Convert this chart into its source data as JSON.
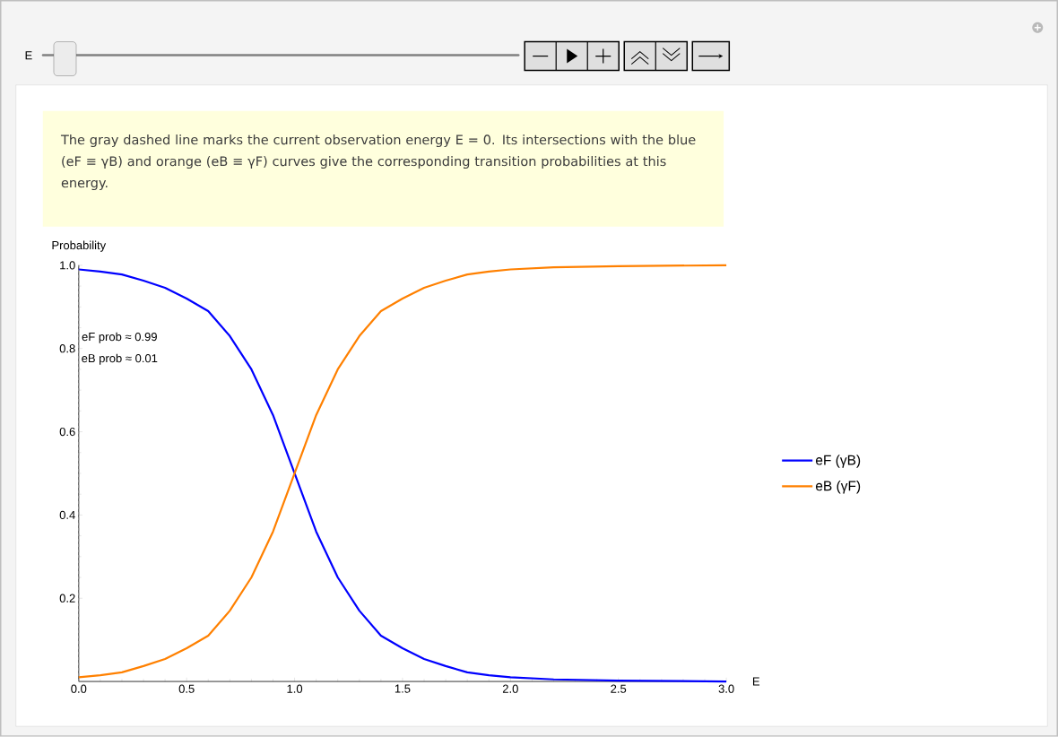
{
  "chart_data": {
    "type": "line",
    "annotations": [
      "The gray dashed line marks the current observation energy  E = 0. Its intersections with the blue (eF ≡ γB) and orange (eB ≡ γF) curves give the corresponding transition probabilities at this energy.",
      "eF prob ≈ 0.99",
      "eB prob ≈ 0.01",
      "E"
    ],
    "xlabel": "E",
    "ylabel": "Probability",
    "x": [
      0,
      0.1,
      0.2,
      0.3,
      0.4,
      0.5,
      0.6,
      0.7,
      0.8,
      0.9,
      1.0,
      1.1,
      1.2,
      1.3,
      1.4,
      1.5,
      1.6,
      1.7,
      1.8,
      1.9,
      2.0,
      2.2,
      2.5,
      3.0
    ],
    "series": [
      {
        "name": "eF (γB)",
        "color": "#0000ff",
        "values": [
          0.99,
          0.985,
          0.978,
          0.963,
          0.946,
          0.92,
          0.89,
          0.83,
          0.75,
          0.64,
          0.5,
          0.36,
          0.25,
          0.17,
          0.11,
          0.08,
          0.054,
          0.037,
          0.022,
          0.015,
          0.01,
          0.005,
          0.002,
          0.0
        ]
      },
      {
        "name": "eB (γF)",
        "color": "#ff8000",
        "values": [
          0.01,
          0.015,
          0.022,
          0.037,
          0.054,
          0.08,
          0.11,
          0.17,
          0.25,
          0.36,
          0.5,
          0.64,
          0.75,
          0.83,
          0.89,
          0.92,
          0.946,
          0.963,
          0.978,
          0.985,
          0.99,
          0.995,
          0.998,
          1.0
        ]
      }
    ],
    "xlim": [
      0,
      3.0
    ],
    "ylim": [
      0,
      1.0
    ],
    "xticks": [
      {
        "value": 0,
        "label": "0.0"
      },
      0.5,
      {
        "value": 1,
        "label": "1.0"
      },
      1.5,
      {
        "value": 2,
        "label": "2.0"
      },
      2.5,
      {
        "value": 3,
        "label": "3.0"
      }
    ],
    "yticks": [
      0.2,
      0.4,
      0.6,
      0.8,
      {
        "value": 1,
        "label": "1.0"
      }
    ],
    "ref_lines": [
      {
        "axis": "x",
        "value": 0,
        "color": "#999999",
        "line_style": "dashed"
      }
    ],
    "legend": "right",
    "grid": false
  }
}
